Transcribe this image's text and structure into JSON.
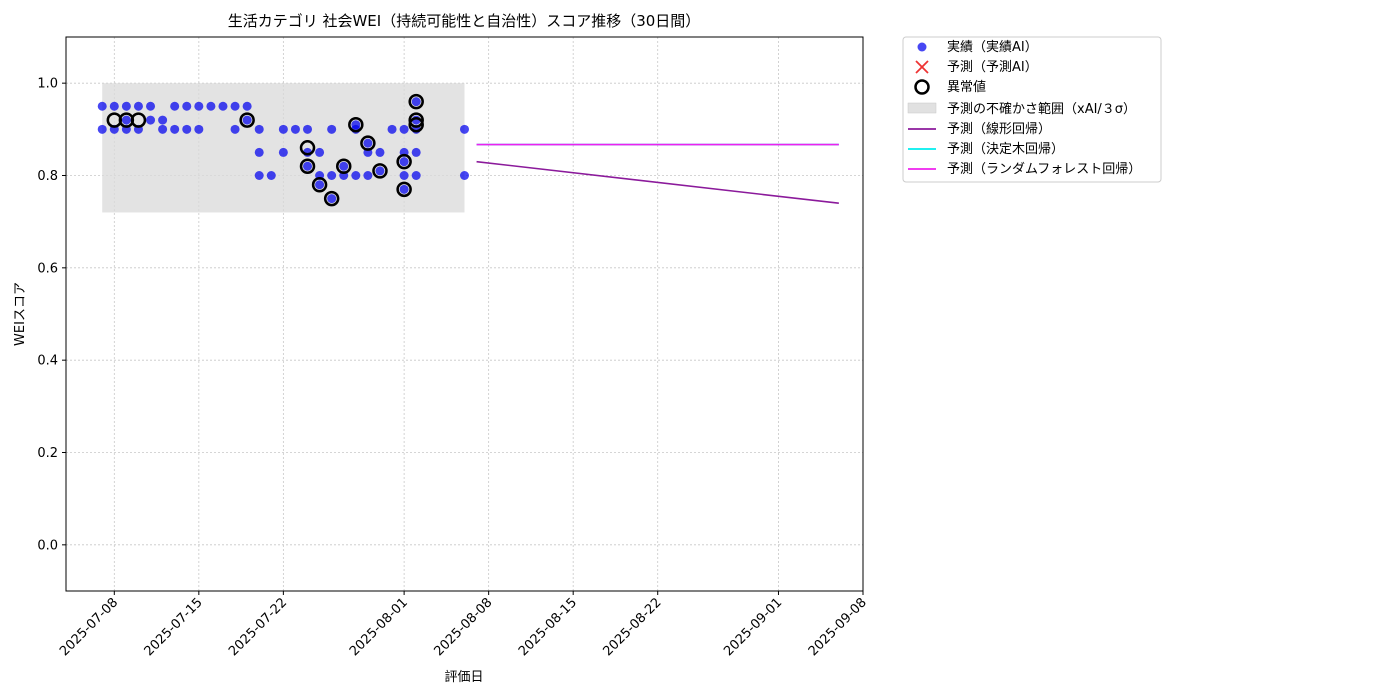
{
  "chart_data": {
    "type": "scatter",
    "title": "生活カテゴリ 社会WEI（持続可能性と自治性）スコア推移（30日間）",
    "xlabel": "評価日",
    "ylabel": "WEIスコア",
    "xlim": [
      "2025-07-04",
      "2025-09-08"
    ],
    "ylim": [
      -0.1,
      1.1
    ],
    "grid": true,
    "legend_position": "outside-top-right",
    "x_ticks": [
      "2025-07-08",
      "2025-07-15",
      "2025-07-22",
      "2025-08-01",
      "2025-08-08",
      "2025-08-15",
      "2025-08-22",
      "2025-09-01",
      "2025-09-08"
    ],
    "y_ticks": [
      "0.0",
      "0.2",
      "0.4",
      "0.6",
      "0.8",
      "1.0"
    ],
    "colors": {
      "actual": "#0000ee",
      "predicted_x": "#ee3333",
      "anomaly": "#000000",
      "uncertainty_band": "#d9d9d9",
      "linear": "#8b1a9b",
      "decision_tree": "#00eeee",
      "random_forest": "#ee22ee"
    },
    "legend": {
      "actual": "実績（実績AI）",
      "predicted": "予測（予測AI）",
      "anomaly": "異常値",
      "uncertainty": "予測の不確かさ範囲（xAI/３σ）",
      "linear": "予測（線形回帰）",
      "decision_tree": "予測（決定木回帰）",
      "random_forest": "予測（ランダムフォレスト回帰）"
    },
    "uncertainty_band": {
      "x": [
        "2025-07-07",
        "2025-08-06"
      ],
      "y": [
        0.72,
        1.0
      ]
    },
    "series": [
      {
        "name": "実績（実績AI）",
        "kind": "scatter",
        "points": [
          [
            "2025-07-07",
            0.9
          ],
          [
            "2025-07-07",
            0.95
          ],
          [
            "2025-07-08",
            0.95
          ],
          [
            "2025-07-08",
            0.9
          ],
          [
            "2025-07-09",
            0.95
          ],
          [
            "2025-07-09",
            0.9
          ],
          [
            "2025-07-09",
            0.92
          ],
          [
            "2025-07-10",
            0.9
          ],
          [
            "2025-07-10",
            0.95
          ],
          [
            "2025-07-11",
            0.95
          ],
          [
            "2025-07-11",
            0.92
          ],
          [
            "2025-07-12",
            0.9
          ],
          [
            "2025-07-12",
            0.92
          ],
          [
            "2025-07-13",
            0.9
          ],
          [
            "2025-07-13",
            0.95
          ],
          [
            "2025-07-14",
            0.95
          ],
          [
            "2025-07-14",
            0.9
          ],
          [
            "2025-07-15",
            0.9
          ],
          [
            "2025-07-15",
            0.95
          ],
          [
            "2025-07-16",
            0.95
          ],
          [
            "2025-07-17",
            0.95
          ],
          [
            "2025-07-18",
            0.9
          ],
          [
            "2025-07-18",
            0.95
          ],
          [
            "2025-07-19",
            0.95
          ],
          [
            "2025-07-19",
            0.92
          ],
          [
            "2025-07-20",
            0.9
          ],
          [
            "2025-07-20",
            0.85
          ],
          [
            "2025-07-20",
            0.8
          ],
          [
            "2025-07-21",
            0.8
          ],
          [
            "2025-07-22",
            0.85
          ],
          [
            "2025-07-22",
            0.9
          ],
          [
            "2025-07-23",
            0.9
          ],
          [
            "2025-07-24",
            0.9
          ],
          [
            "2025-07-24",
            0.85
          ],
          [
            "2025-07-24",
            0.82
          ],
          [
            "2025-07-25",
            0.8
          ],
          [
            "2025-07-25",
            0.85
          ],
          [
            "2025-07-25",
            0.78
          ],
          [
            "2025-07-26",
            0.9
          ],
          [
            "2025-07-26",
            0.8
          ],
          [
            "2025-07-26",
            0.75
          ],
          [
            "2025-07-27",
            0.8
          ],
          [
            "2025-07-27",
            0.82
          ],
          [
            "2025-07-28",
            0.8
          ],
          [
            "2025-07-28",
            0.9
          ],
          [
            "2025-07-28",
            0.91
          ],
          [
            "2025-07-29",
            0.85
          ],
          [
            "2025-07-29",
            0.8
          ],
          [
            "2025-07-29",
            0.87
          ],
          [
            "2025-07-30",
            0.81
          ],
          [
            "2025-07-30",
            0.85
          ],
          [
            "2025-07-31",
            0.9
          ],
          [
            "2025-08-01",
            0.9
          ],
          [
            "2025-08-01",
            0.85
          ],
          [
            "2025-08-01",
            0.8
          ],
          [
            "2025-08-01",
            0.77
          ],
          [
            "2025-08-01",
            0.83
          ],
          [
            "2025-08-02",
            0.9
          ],
          [
            "2025-08-02",
            0.92
          ],
          [
            "2025-08-02",
            0.96
          ],
          [
            "2025-08-02",
            0.85
          ],
          [
            "2025-08-02",
            0.8
          ],
          [
            "2025-08-06",
            0.9
          ],
          [
            "2025-08-06",
            0.8
          ]
        ]
      },
      {
        "name": "異常値",
        "kind": "anomaly",
        "points": [
          [
            "2025-07-08",
            0.92
          ],
          [
            "2025-07-09",
            0.92
          ],
          [
            "2025-07-10",
            0.92
          ],
          [
            "2025-07-19",
            0.92
          ],
          [
            "2025-07-24",
            0.86
          ],
          [
            "2025-07-24",
            0.82
          ],
          [
            "2025-07-25",
            0.78
          ],
          [
            "2025-07-26",
            0.75
          ],
          [
            "2025-07-27",
            0.82
          ],
          [
            "2025-07-28",
            0.91
          ],
          [
            "2025-07-29",
            0.87
          ],
          [
            "2025-07-30",
            0.81
          ],
          [
            "2025-08-01",
            0.77
          ],
          [
            "2025-08-01",
            0.83
          ],
          [
            "2025-08-02",
            0.91
          ],
          [
            "2025-08-02",
            0.92
          ],
          [
            "2025-08-02",
            0.96
          ]
        ]
      },
      {
        "name": "予測（線形回帰）",
        "kind": "line",
        "color_key": "linear",
        "points": [
          [
            "2025-08-07",
            0.83
          ],
          [
            "2025-09-06",
            0.74
          ]
        ]
      },
      {
        "name": "予測（決定木回帰）",
        "kind": "line",
        "color_key": "decision_tree",
        "points": [
          [
            "2025-08-07",
            0.867
          ],
          [
            "2025-09-06",
            0.867
          ]
        ]
      },
      {
        "name": "予測（ランダムフォレスト回帰）",
        "kind": "line",
        "color_key": "random_forest",
        "points": [
          [
            "2025-08-07",
            0.867
          ],
          [
            "2025-09-06",
            0.867
          ]
        ]
      }
    ]
  }
}
